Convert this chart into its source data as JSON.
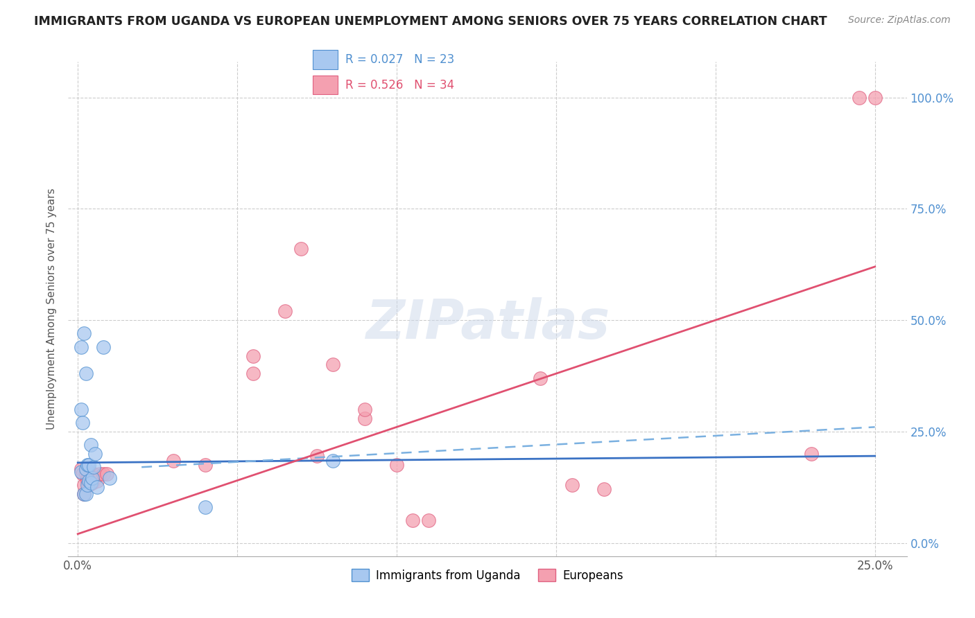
{
  "title": "IMMIGRANTS FROM UGANDA VS EUROPEAN UNEMPLOYMENT AMONG SENIORS OVER 75 YEARS CORRELATION CHART",
  "source": "Source: ZipAtlas.com",
  "ylabel": "Unemployment Among Seniors over 75 years",
  "ytick_labels": [
    "0.0%",
    "25.0%",
    "50.0%",
    "75.0%",
    "100.0%"
  ],
  "ytick_values": [
    0,
    25,
    50,
    75,
    100
  ],
  "xtick_labels": [
    "0.0%",
    "25.0%"
  ],
  "xtick_values": [
    0,
    25
  ],
  "xlim": [
    -0.3,
    26
  ],
  "ylim": [
    -3,
    108
  ],
  "legend_label1": "Immigrants from Uganda",
  "legend_label2": "Europeans",
  "color_blue": "#a8c8f0",
  "color_pink": "#f4a0b0",
  "color_blue_dark": "#5090d0",
  "color_pink_dark": "#e06080",
  "blue_scatter": [
    [
      0.1,
      44
    ],
    [
      0.1,
      16
    ],
    [
      0.1,
      30
    ],
    [
      0.15,
      27
    ],
    [
      0.2,
      11
    ],
    [
      0.25,
      11
    ],
    [
      0.25,
      16.5
    ],
    [
      0.3,
      13
    ],
    [
      0.3,
      17.5
    ],
    [
      0.35,
      17.5
    ],
    [
      0.35,
      14
    ],
    [
      0.4,
      13.5
    ],
    [
      0.4,
      22
    ],
    [
      0.45,
      14.5
    ],
    [
      0.5,
      17
    ],
    [
      0.55,
      20
    ],
    [
      0.6,
      12.5
    ],
    [
      0.8,
      44
    ],
    [
      1.0,
      14.5
    ],
    [
      4.0,
      8
    ],
    [
      8.0,
      18.5
    ],
    [
      0.2,
      47
    ],
    [
      0.25,
      38
    ]
  ],
  "pink_scatter": [
    [
      0.1,
      16.5
    ],
    [
      0.15,
      15.5
    ],
    [
      0.2,
      13
    ],
    [
      0.2,
      11
    ],
    [
      0.25,
      15.5
    ],
    [
      0.3,
      14.5
    ],
    [
      0.3,
      14
    ],
    [
      0.35,
      13
    ],
    [
      0.4,
      15.5
    ],
    [
      0.4,
      14.5
    ],
    [
      0.45,
      13.5
    ],
    [
      0.5,
      15.5
    ],
    [
      0.55,
      14.5
    ],
    [
      0.6,
      14
    ],
    [
      0.7,
      15.5
    ],
    [
      0.8,
      15.5
    ],
    [
      0.9,
      15.5
    ],
    [
      3.0,
      18.5
    ],
    [
      4.0,
      17.5
    ],
    [
      5.5,
      42
    ],
    [
      5.5,
      38
    ],
    [
      6.5,
      52
    ],
    [
      7.0,
      66
    ],
    [
      7.5,
      19.5
    ],
    [
      8.0,
      40
    ],
    [
      9.0,
      28
    ],
    [
      9.0,
      30
    ],
    [
      10.0,
      17.5
    ],
    [
      10.5,
      5
    ],
    [
      11.0,
      5
    ],
    [
      14.5,
      37
    ],
    [
      15.5,
      13
    ],
    [
      16.5,
      12
    ],
    [
      23.0,
      20
    ],
    [
      24.5,
      100
    ],
    [
      25.0,
      100
    ]
  ],
  "blue_solid_line_x": [
    0,
    25
  ],
  "blue_solid_line_y": [
    18.0,
    19.5
  ],
  "blue_dashed_line_x": [
    2.0,
    25
  ],
  "blue_dashed_line_y": [
    17.0,
    26
  ],
  "pink_solid_line_x": [
    0,
    25
  ],
  "pink_solid_line_y": [
    2.0,
    62
  ],
  "watermark": "ZIPatlas",
  "background_color": "#ffffff",
  "grid_color": "#cccccc"
}
